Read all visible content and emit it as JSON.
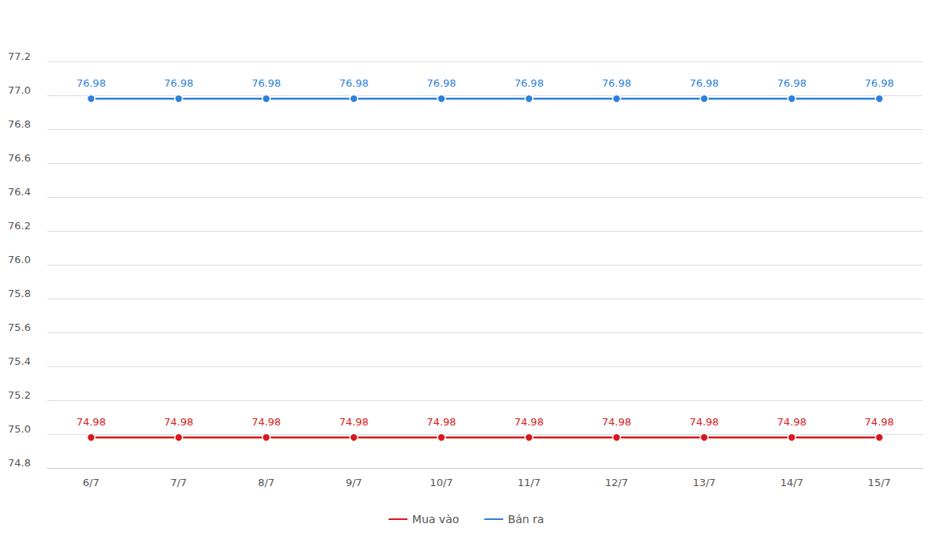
{
  "chart_data": {
    "type": "line",
    "categories": [
      "6/7",
      "7/7",
      "8/7",
      "9/7",
      "10/7",
      "11/7",
      "12/7",
      "13/7",
      "14/7",
      "15/7"
    ],
    "series": [
      {
        "name": "Mua vào",
        "color": "#d7191c",
        "marker": "circle",
        "values": [
          74.98,
          74.98,
          74.98,
          74.98,
          74.98,
          74.98,
          74.98,
          74.98,
          74.98,
          74.98
        ]
      },
      {
        "name": "Bán ra",
        "color": "#2f80d9",
        "marker": "circle",
        "values": [
          76.98,
          76.98,
          76.98,
          76.98,
          76.98,
          76.98,
          76.98,
          76.98,
          76.98,
          76.98
        ]
      }
    ],
    "ylim": [
      74.8,
      77.2
    ],
    "yticks": [
      74.8,
      {
        "value": 75,
        "label": "75.0"
      },
      75.2,
      75.4,
      75.6,
      75.8,
      {
        "value": 76,
        "label": "76.0"
      },
      76.2,
      76.4,
      76.6,
      76.8,
      {
        "value": 77,
        "label": "77.0"
      },
      77.2
    ],
    "grid": true,
    "legend": "bottom",
    "data_labels": true
  }
}
